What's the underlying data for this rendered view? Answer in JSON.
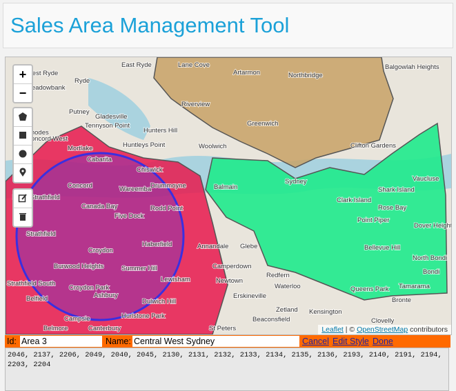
{
  "header": {
    "title": "Sales Area Management Tool"
  },
  "map": {
    "zoom_in": "+",
    "zoom_out": "−",
    "labels": [
      "West Ryde",
      "Ryde",
      "Meadowbank",
      "East Ryde",
      "Lane Cove",
      "Artarmon",
      "Northbridge",
      "Balgowlah Heights",
      "Putney",
      "Gladesville",
      "Tennyson Point",
      "Hunters Hill",
      "Rhodes",
      "Huntleys Point",
      "Woolwich",
      "Riverview",
      "Greenwich",
      "Clifton Gardens",
      "Concord West",
      "Mortlake",
      "Cabarita",
      "Chiswick",
      "Concord",
      "Wareemba",
      "Drummoyne",
      "North Strathfield",
      "Canada Bay",
      "Five Dock",
      "Rodd Point",
      "Balmain",
      "Sydney",
      "Vaucluse",
      "Clark Island",
      "Shark Island",
      "Rose Bay",
      "Point Piper",
      "Strathfield",
      "Croydon",
      "Haberfield",
      "Annandale",
      "Glebe",
      "Bellevue Hill",
      "Dover Heights",
      "Burwood Heights",
      "Summer Hill",
      "Camperdown",
      "North Bondi",
      "Bondi",
      "Lewisham",
      "Newtown",
      "Redfern",
      "Strathfield South",
      "Croydon Park",
      "Ashbury",
      "Waterloo",
      "Queens Park",
      "Tamarama",
      "Belfield",
      "Dulwich Hill",
      "Erskineville",
      "Bronte",
      "Zetland",
      "Campsie",
      "Hurlstone Park",
      "Kensington",
      "Beaconsfield",
      "Belmore",
      "Canterbury",
      "St Peters",
      "Clovelly"
    ],
    "attribution": {
      "leaflet": "Leaflet",
      "separator": "| ©",
      "osm": "OpenStreetMap",
      "contributors": "contributors"
    }
  },
  "form": {
    "id_label": "Id:",
    "id_value": "Area 3",
    "name_label": "Name:",
    "name_value": "Central West Sydney",
    "actions": [
      "Cancel",
      "Edit Style",
      "Done"
    ],
    "postcodes": "2046, 2137, 2206, 2049, 2040, 2045, 2130, 2131, 2132, 2133, 2134, 2135, 2136, 2193, 2140, 2191, 2194, 2203, 2204"
  }
}
